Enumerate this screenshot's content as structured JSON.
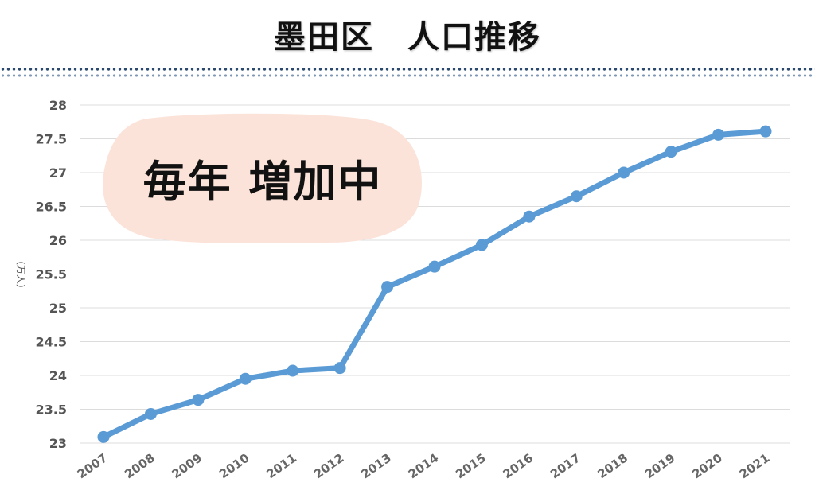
{
  "title": "墨田区　人口推移",
  "chart_data": {
    "type": "line",
    "title": "墨田区　人口推移",
    "ylabel": "（万人）",
    "xlabel": "",
    "ylim": [
      23,
      28
    ],
    "yticks": [
      23,
      23.5,
      24,
      24.5,
      25,
      25.5,
      26,
      26.5,
      27,
      27.5,
      28
    ],
    "grid": true,
    "x": [
      "2007",
      "2008",
      "2009",
      "2010",
      "2011",
      "2012",
      "2013",
      "2014",
      "2015",
      "2016",
      "2017",
      "2018",
      "2019",
      "2020",
      "2021"
    ],
    "series": [
      {
        "values": [
          23.09,
          23.43,
          23.64,
          23.95,
          24.07,
          24.11,
          25.31,
          25.61,
          25.93,
          26.35,
          26.65,
          27.0,
          27.31,
          27.56,
          27.61
        ],
        "color": "#5b9bd5"
      }
    ],
    "annotation": {
      "text": "毎年  増加中",
      "background": "#fbe3d9"
    }
  }
}
